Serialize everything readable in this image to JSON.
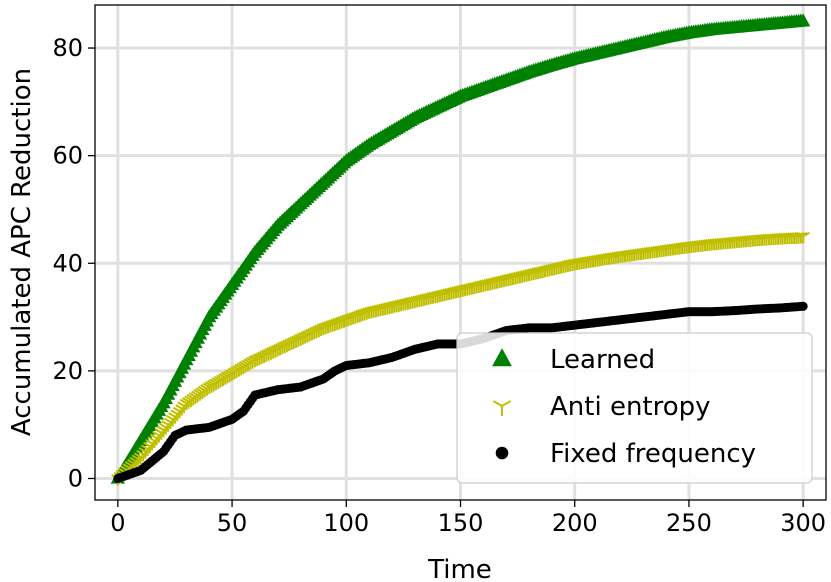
{
  "chart_data": {
    "type": "scatter",
    "xlabel": "Time",
    "ylabel": "Accumulated APC Reduction",
    "xlim": [
      -10,
      310
    ],
    "ylim": [
      -4,
      88
    ],
    "xticks": [
      0,
      50,
      100,
      150,
      200,
      250,
      300
    ],
    "yticks": [
      0,
      20,
      40,
      60,
      80
    ],
    "grid": true,
    "legend_position": "lower-right",
    "series": [
      {
        "name": "Learned",
        "marker": "triangle-up",
        "color": "#008000",
        "points": [
          [
            0,
            0
          ],
          [
            10,
            7
          ],
          [
            20,
            14
          ],
          [
            30,
            22
          ],
          [
            40,
            30
          ],
          [
            50,
            36
          ],
          [
            60,
            42
          ],
          [
            70,
            47
          ],
          [
            80,
            51
          ],
          [
            90,
            55
          ],
          [
            100,
            59
          ],
          [
            110,
            62
          ],
          [
            120,
            64.5
          ],
          [
            130,
            67
          ],
          [
            140,
            69
          ],
          [
            150,
            71
          ],
          [
            160,
            72.5
          ],
          [
            170,
            74
          ],
          [
            180,
            75.5
          ],
          [
            190,
            76.8
          ],
          [
            200,
            78
          ],
          [
            210,
            79
          ],
          [
            220,
            80
          ],
          [
            230,
            81
          ],
          [
            240,
            82
          ],
          [
            250,
            82.8
          ],
          [
            260,
            83.4
          ],
          [
            270,
            83.8
          ],
          [
            280,
            84.2
          ],
          [
            290,
            84.6
          ],
          [
            300,
            85
          ]
        ]
      },
      {
        "name": "Anti entropy",
        "marker": "tri-down",
        "color": "#bfbf00",
        "points": [
          [
            0,
            0
          ],
          [
            10,
            4
          ],
          [
            20,
            9
          ],
          [
            30,
            14
          ],
          [
            40,
            17
          ],
          [
            50,
            19.5
          ],
          [
            60,
            22
          ],
          [
            70,
            24
          ],
          [
            80,
            26
          ],
          [
            90,
            28
          ],
          [
            100,
            29.5
          ],
          [
            110,
            31
          ],
          [
            120,
            32
          ],
          [
            130,
            33
          ],
          [
            140,
            34
          ],
          [
            150,
            35
          ],
          [
            160,
            36
          ],
          [
            170,
            37
          ],
          [
            180,
            38
          ],
          [
            190,
            39
          ],
          [
            200,
            40
          ],
          [
            210,
            40.7
          ],
          [
            220,
            41.4
          ],
          [
            230,
            42
          ],
          [
            240,
            42.6
          ],
          [
            250,
            43.2
          ],
          [
            260,
            43.7
          ],
          [
            270,
            44.1
          ],
          [
            280,
            44.5
          ],
          [
            290,
            44.8
          ],
          [
            300,
            45
          ]
        ]
      },
      {
        "name": "Fixed frequency",
        "marker": "circle",
        "color": "#000000",
        "points": [
          [
            0,
            0
          ],
          [
            10,
            1.5
          ],
          [
            20,
            5
          ],
          [
            25,
            8
          ],
          [
            30,
            9
          ],
          [
            40,
            9.5
          ],
          [
            50,
            11
          ],
          [
            55,
            12.5
          ],
          [
            60,
            15.5
          ],
          [
            70,
            16.5
          ],
          [
            80,
            17
          ],
          [
            90,
            18.5
          ],
          [
            95,
            20
          ],
          [
            100,
            21
          ],
          [
            110,
            21.5
          ],
          [
            120,
            22.5
          ],
          [
            130,
            24
          ],
          [
            140,
            25
          ],
          [
            150,
            25
          ],
          [
            160,
            26
          ],
          [
            170,
            27.5
          ],
          [
            180,
            28
          ],
          [
            190,
            28
          ],
          [
            200,
            28.5
          ],
          [
            210,
            29
          ],
          [
            220,
            29.5
          ],
          [
            230,
            30
          ],
          [
            240,
            30.5
          ],
          [
            250,
            31
          ],
          [
            260,
            31
          ],
          [
            270,
            31.2
          ],
          [
            280,
            31.5
          ],
          [
            290,
            31.7
          ],
          [
            300,
            32
          ]
        ]
      }
    ]
  }
}
